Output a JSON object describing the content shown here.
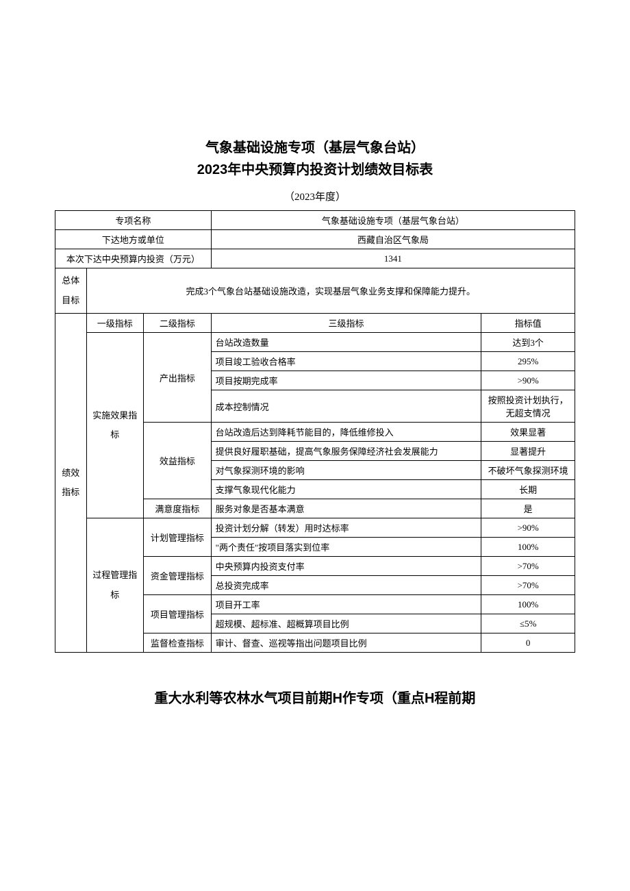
{
  "title_line1": "气象基础设施专项（基层气象台站）",
  "title_line2": "2023年中央预算内投资计划绩效目标表",
  "year_line": "（2023年度）",
  "footer_title": "重大水利等农林水气项目前期H作专项（重点H程前期",
  "header_rows": [
    {
      "label": "专项名称",
      "value": "气象基础设施专项（基层气象台站）"
    },
    {
      "label": "下达地方或单位",
      "value": "西藏自治区气象局"
    },
    {
      "label": "本次下达中央预算内投资（万元）",
      "value": "1341"
    }
  ],
  "overall_goal_label": "总体目标",
  "overall_goal_value": "完成3个气象台站基础设施改造，实现基层气象业务支撑和保障能力提升。",
  "col_headers": {
    "l1": "一级指标",
    "l2": "二级指标",
    "l3": "三级指标",
    "val": "指标值"
  },
  "indicators_label": "绩效指标",
  "groups": [
    {
      "l1": "实施效果指标",
      "sub": [
        {
          "l2": "产出指标",
          "rows": [
            {
              "l3": "台站改造数量",
              "val": "达到3个"
            },
            {
              "l3": "项目竣工验收合格率",
              "val": "295%"
            },
            {
              "l3": "项目按期完成率",
              "val": ">90%"
            },
            {
              "l3": "成本控制情况",
              "val": "按照投资计划执行，无超支情况"
            }
          ]
        },
        {
          "l2": "效益指标",
          "rows": [
            {
              "l3": "台站改造后达到降耗节能目的，降低维修投入",
              "val": "效果显著"
            },
            {
              "l3": "提供良好履职基础，提高气象服务保障经济社会发展能力",
              "val": "显著提升"
            },
            {
              "l3": "对气象探测环境的影响",
              "val": "不破坏气象探测环境"
            },
            {
              "l3": "支撑气象现代化能力",
              "val": "长期"
            }
          ]
        },
        {
          "l2": "满意度指标",
          "rows": [
            {
              "l3": "服务对象是否基本满意",
              "val": "是"
            }
          ]
        }
      ]
    },
    {
      "l1": "过程管理指标",
      "sub": [
        {
          "l2": "计划管理指标",
          "rows": [
            {
              "l3": "投资计划分解（转发）用时达标率",
              "val": ">90%"
            },
            {
              "l3": "\"两个责任\"按项目落实到位率",
              "val": "100%"
            }
          ]
        },
        {
          "l2": "资金管理指标",
          "rows": [
            {
              "l3": "中央预算内投资支付率",
              "val": ">70%"
            },
            {
              "l3": "总投资完成率",
              "val": ">70%"
            }
          ]
        },
        {
          "l2": "项目管理指标",
          "rows": [
            {
              "l3": "项目开工率",
              "val": "100%"
            },
            {
              "l3": "超规模、超标准、超概算项目比例",
              "val": "≤5%"
            }
          ]
        },
        {
          "l2": "监督检查指标",
          "rows": [
            {
              "l3": "审计、督查、巡视等指出问题项目比例",
              "val": "0"
            }
          ]
        }
      ]
    }
  ],
  "col_widths_pct": [
    6,
    11,
    13,
    52,
    18
  ]
}
